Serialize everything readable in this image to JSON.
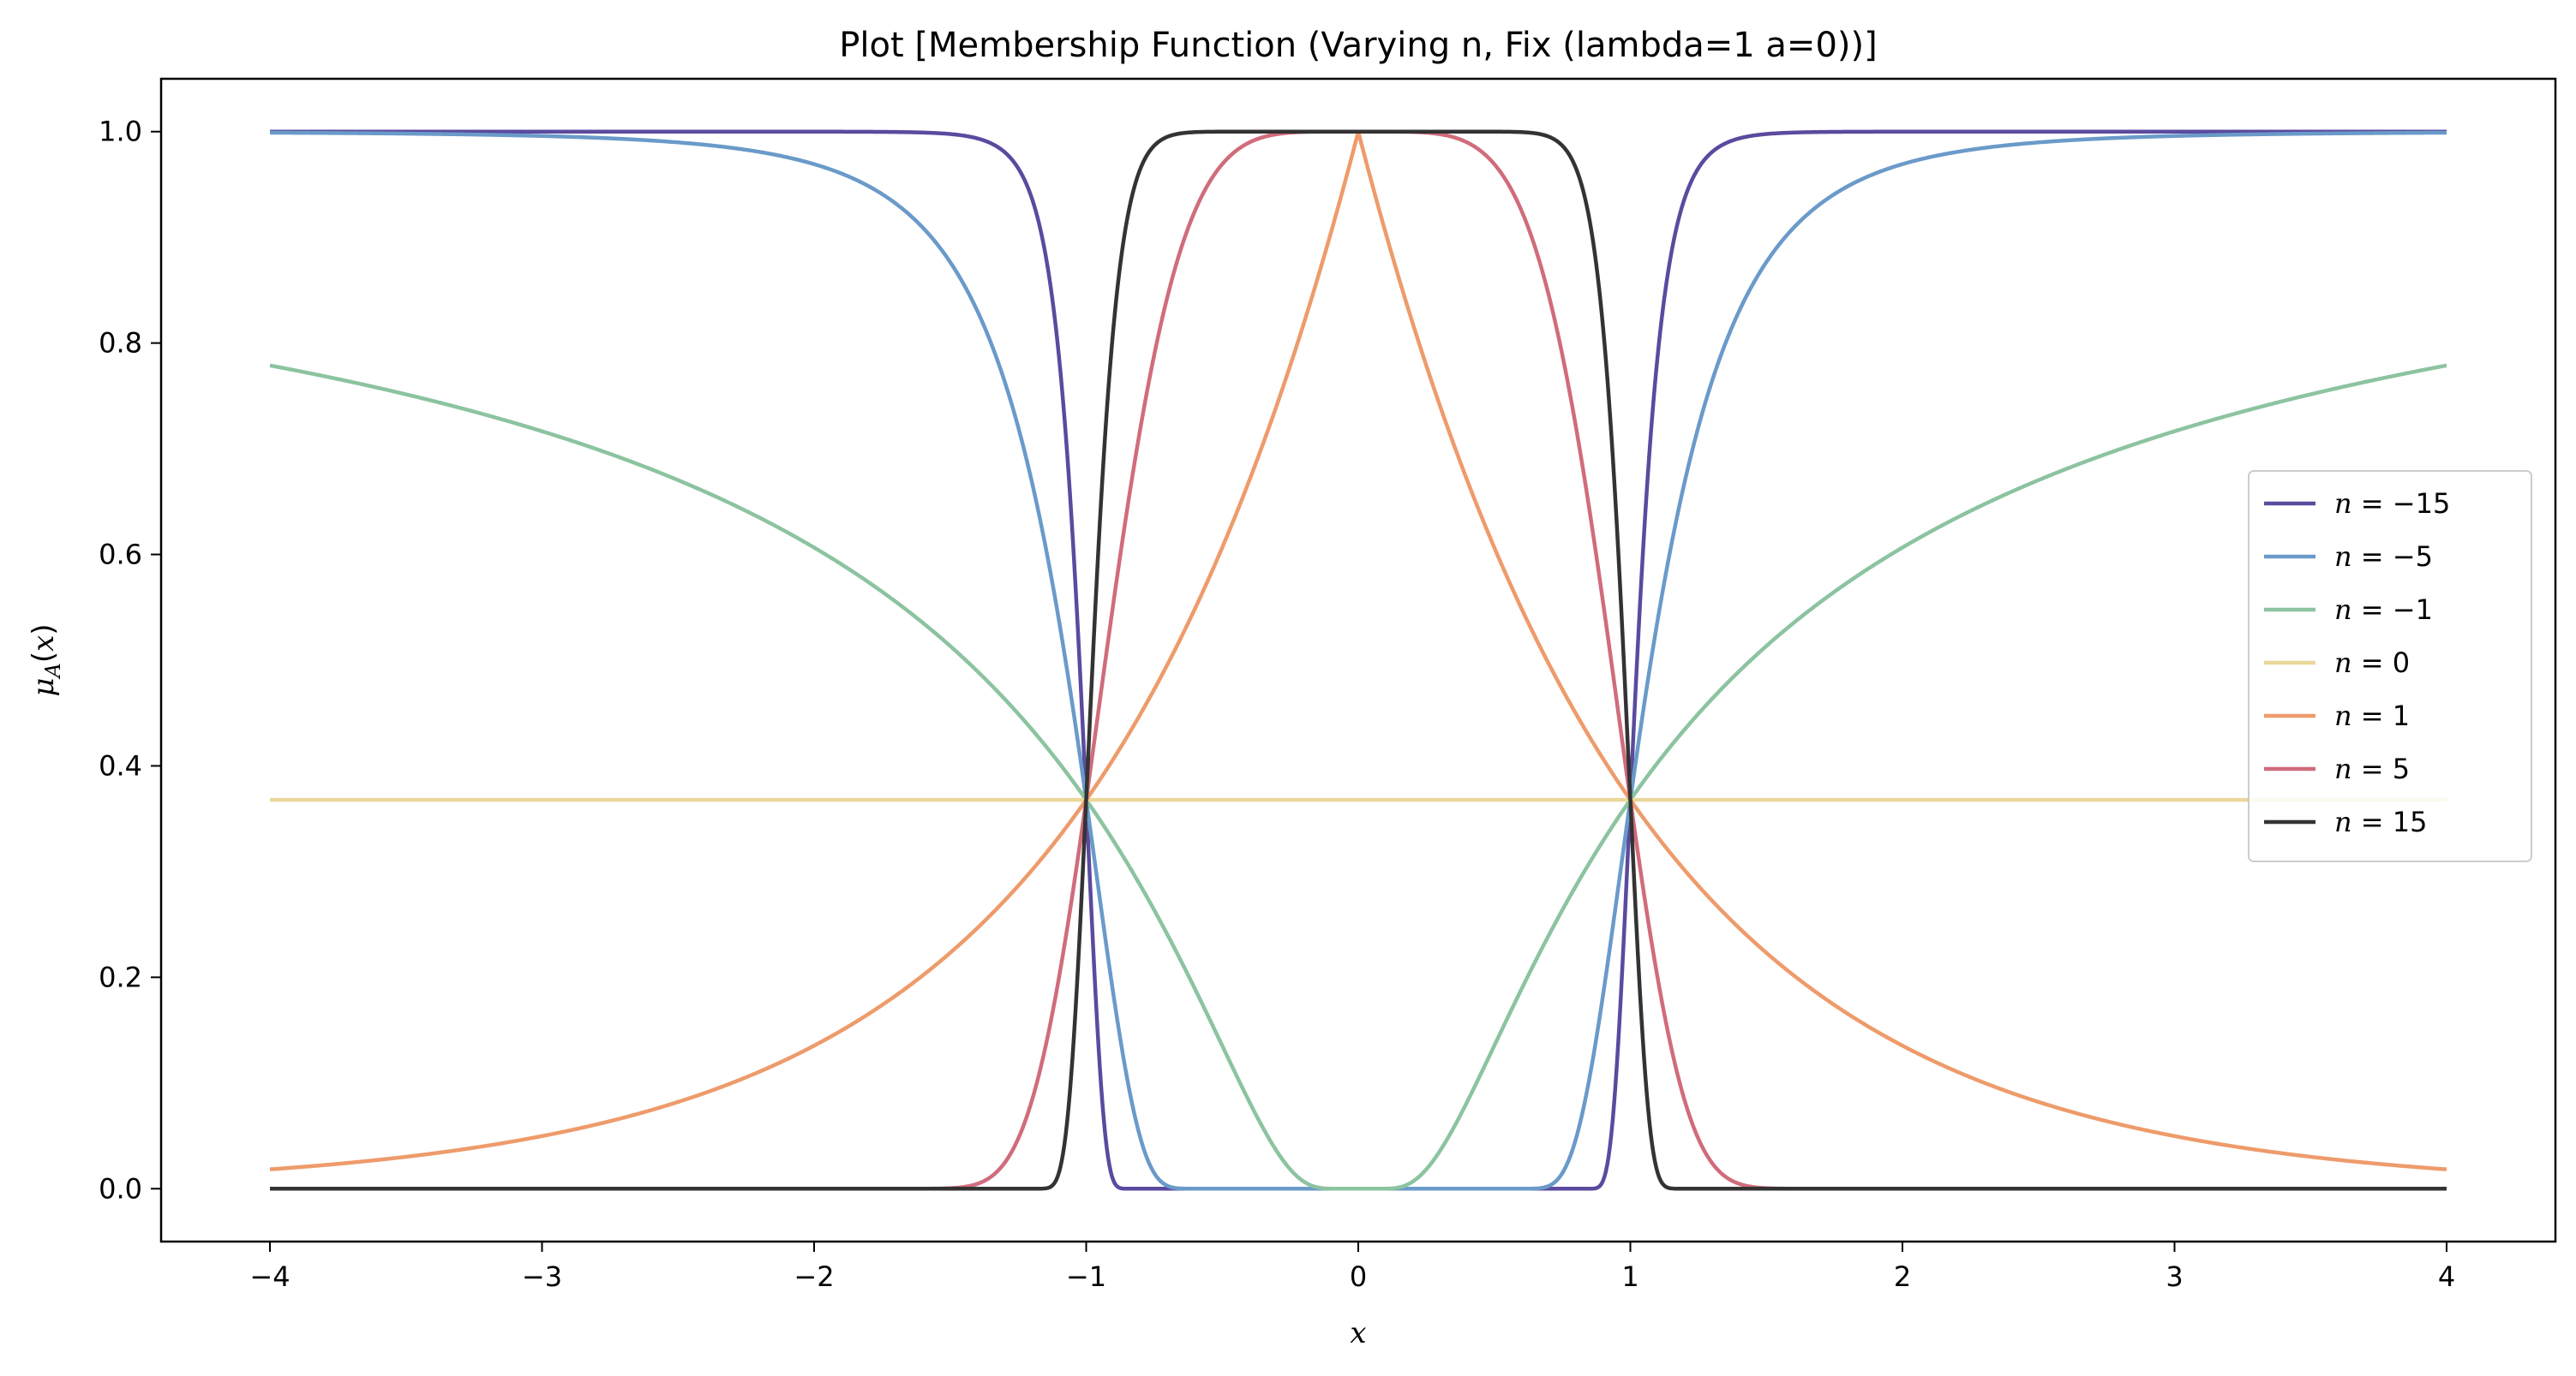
{
  "chart_data": {
    "type": "line",
    "title": "Plot [Membership Function (Varying n, Fix (lambda=1 a=0))]",
    "xlabel": "x",
    "ylabel": "μA(x)",
    "xlim": [
      -4.4,
      4.4
    ],
    "ylim": [
      -0.05,
      1.05
    ],
    "xticks": [
      -4,
      -3,
      -2,
      -1,
      0,
      1,
      2,
      3,
      4
    ],
    "xtick_labels": [
      "−4",
      "−3",
      "−2",
      "−1",
      "0",
      "1",
      "2",
      "3",
      "4"
    ],
    "yticks": [
      0.0,
      0.2,
      0.4,
      0.6,
      0.8,
      1.0
    ],
    "ytick_labels": [
      "0.0",
      "0.2",
      "0.4",
      "0.6",
      "0.8",
      "1.0"
    ],
    "grid": false,
    "legend_position": "center-right",
    "function": "mu(x) = exp(-lambda * |x - a|^n), lambda = 1, a = 0",
    "x_domain": [
      -4,
      4
    ],
    "series": [
      {
        "n": -15,
        "label_var": "n",
        "label_value": " = −15",
        "color": "#5b4a9e"
      },
      {
        "n": -5,
        "label_var": "n",
        "label_value": " = −5",
        "color": "#6a9ac9"
      },
      {
        "n": -1,
        "label_var": "n",
        "label_value": " = −1",
        "color": "#8cc3a0"
      },
      {
        "n": 0,
        "label_var": "n",
        "label_value": " = 0",
        "color": "#ead79a"
      },
      {
        "n": 1,
        "label_var": "n",
        "label_value": " = 1",
        "color": "#ee9b6b"
      },
      {
        "n": 5,
        "label_var": "n",
        "label_value": " = 5",
        "color": "#d06c7c"
      },
      {
        "n": 15,
        "label_var": "n",
        "label_value": " = 15",
        "color": "#333333"
      }
    ]
  }
}
